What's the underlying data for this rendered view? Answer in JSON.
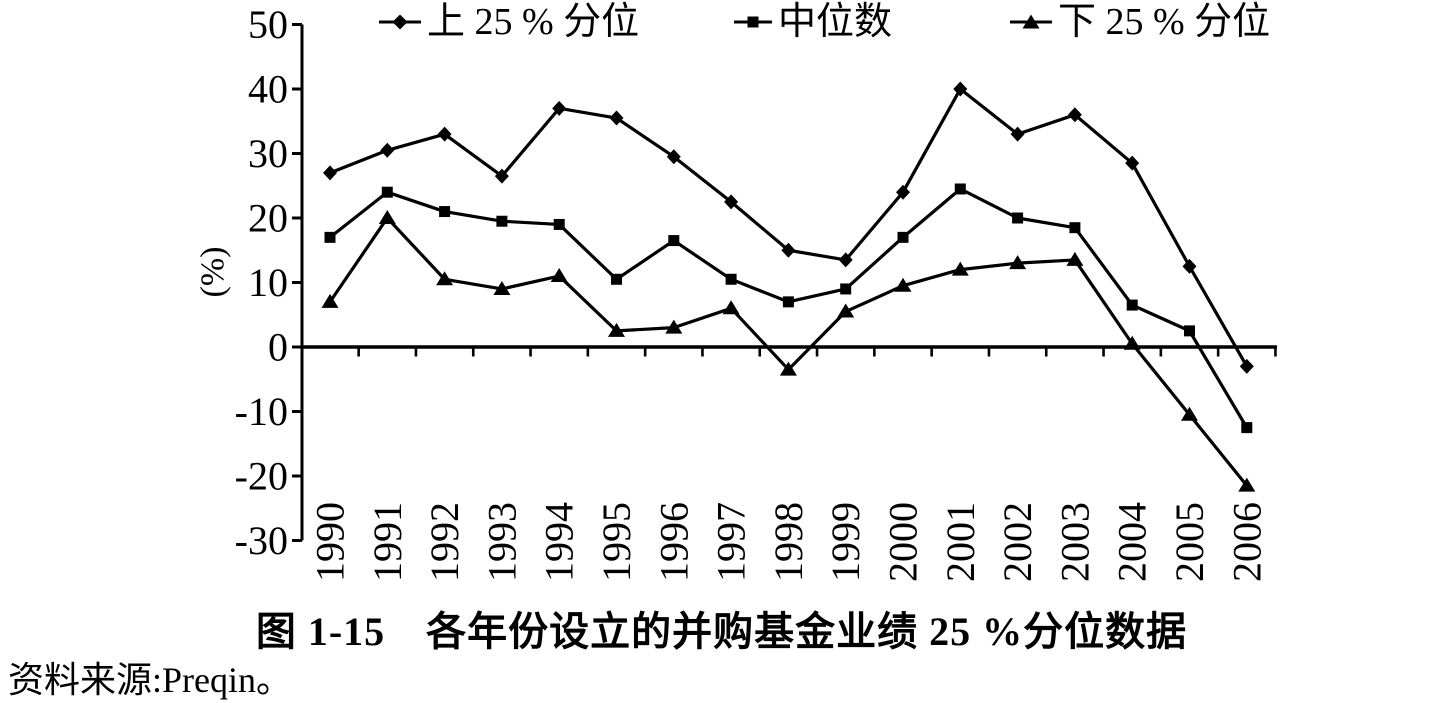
{
  "title": "图 1-15　各年份设立的并购基金业绩 25 %分位数据",
  "source": "资料来源:Preqin。",
  "legend": {
    "items": [
      {
        "label": "上 25 % 分位",
        "marker": "diamond"
      },
      {
        "label": "中位数",
        "marker": "square"
      },
      {
        "label": "下 25 % 分位",
        "marker": "triangle"
      }
    ]
  },
  "axes": {
    "y_unit_label": "(%)"
  },
  "chart_data": {
    "type": "line",
    "title": "图 1-15 各年份设立的并购基金业绩 25 %分位数据",
    "categories": [
      "1990",
      "1991",
      "1992",
      "1993",
      "1994",
      "1995",
      "1996",
      "1997",
      "1998",
      "1999",
      "2000",
      "2001",
      "2002",
      "2003",
      "2004",
      "2005",
      "2006"
    ],
    "series": [
      {
        "name": "上 25 % 分位",
        "marker": "diamond",
        "values": [
          27,
          30.5,
          33,
          26.5,
          37,
          35.5,
          29.5,
          22.5,
          15,
          13.5,
          24,
          40,
          33,
          36,
          28.5,
          12.5,
          -3
        ]
      },
      {
        "name": "中位数",
        "marker": "square",
        "values": [
          17,
          24,
          21,
          19.5,
          19,
          10.5,
          16.5,
          10.5,
          7,
          9,
          17,
          24.5,
          20,
          18.5,
          6.5,
          2.5,
          -12.5
        ]
      },
      {
        "name": "下 25 % 分位",
        "marker": "triangle",
        "values": [
          7,
          20,
          10.5,
          9,
          11,
          2.5,
          3,
          6,
          -3.5,
          5.5,
          9.5,
          12,
          13,
          13.5,
          0.5,
          -10.5,
          -21.5
        ]
      }
    ],
    "xlabel": "",
    "ylabel": "(%)",
    "ylim": [
      -30,
      50
    ],
    "yticks": [
      50,
      40,
      30,
      20,
      10,
      0,
      -10,
      -20,
      -30
    ],
    "xticklabel_rotation": 90,
    "zero_baseline": true,
    "grid": false,
    "legend_position": "top",
    "line_color": "#000000",
    "background_color": "#ffffff"
  }
}
